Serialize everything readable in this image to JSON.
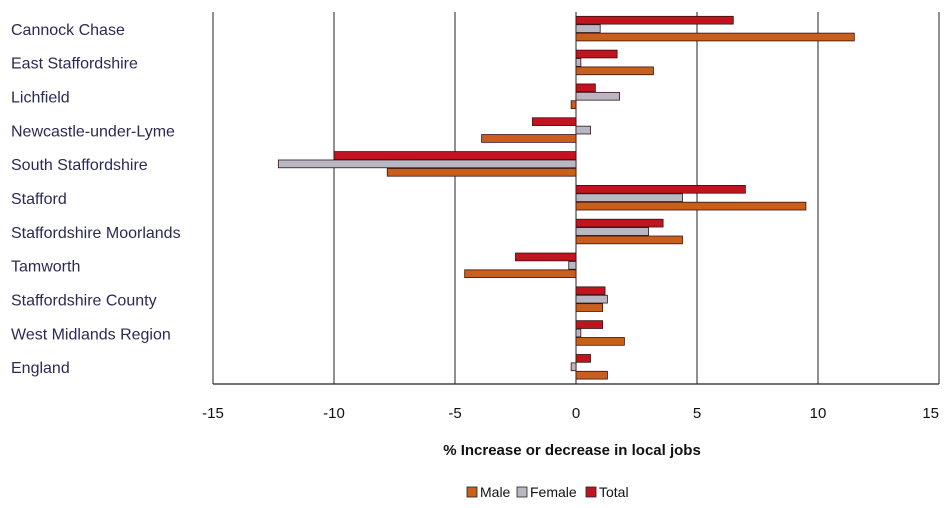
{
  "chart_data": {
    "type": "bar",
    "orientation": "horizontal",
    "categories": [
      "Cannock Chase",
      "East Staffordshire",
      "Lichfield",
      "Newcastle-under-Lyme",
      "South Staffordshire",
      "Stafford",
      "Staffordshire Moorlands",
      "Tamworth",
      "Staffordshire County",
      "West Midlands Region",
      "England"
    ],
    "series": [
      {
        "name": "Total",
        "color": "#c0141e",
        "values": [
          6.5,
          1.7,
          0.8,
          -1.8,
          -10.0,
          7.0,
          3.6,
          -2.5,
          1.2,
          1.1,
          0.6
        ]
      },
      {
        "name": "Female",
        "color": "#b8b8c4",
        "values": [
          1.0,
          0.2,
          1.8,
          0.6,
          -12.3,
          4.4,
          3.0,
          -0.3,
          1.3,
          0.2,
          -0.2
        ]
      },
      {
        "name": "Male",
        "color": "#c8601c",
        "values": [
          11.5,
          3.2,
          -0.2,
          -3.9,
          -7.8,
          9.5,
          4.4,
          -4.6,
          1.1,
          2.0,
          1.3
        ]
      }
    ],
    "legend_order": [
      "Male",
      "Female",
      "Total"
    ],
    "xlim": [
      -15,
      15
    ],
    "xticks": [
      "-15",
      "-10",
      "-5",
      "0",
      "5",
      "10",
      "15"
    ],
    "xlabel": "% Increase or decrease in local jobs",
    "grid": "vertical",
    "legend_position": "bottom-center"
  }
}
